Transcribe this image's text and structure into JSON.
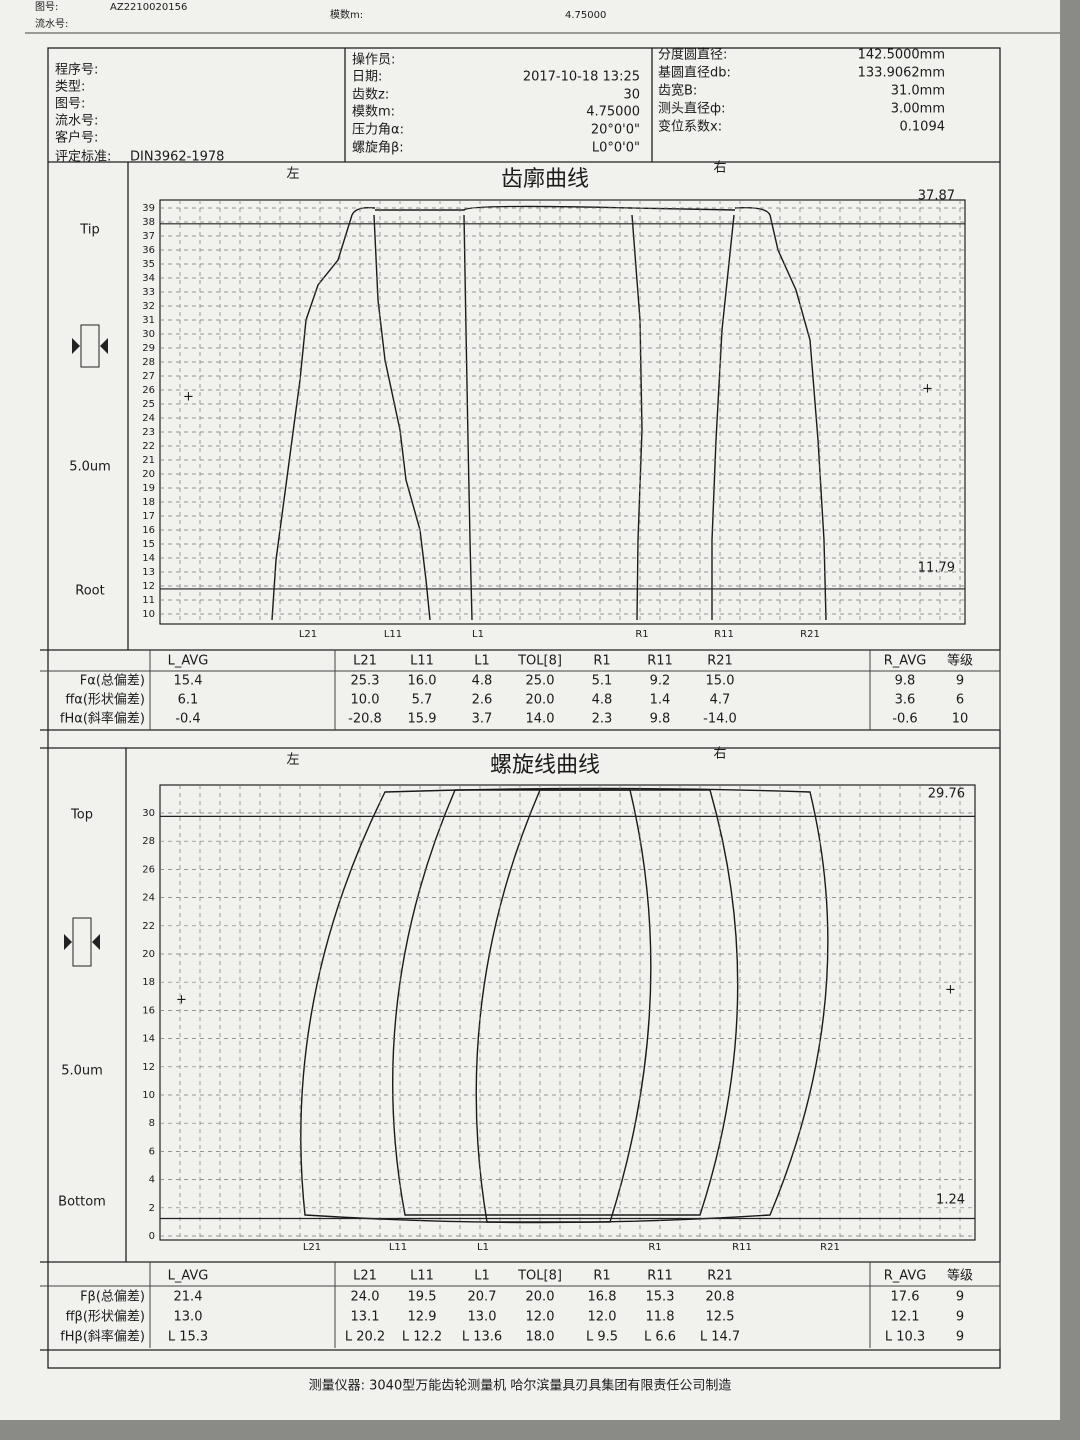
{
  "top_strip": {
    "drawing_no_label": "图号:",
    "drawing_no": "AZ2210020156",
    "serial_label": "流水号:",
    "module_label": "模数m:",
    "module": "4.75000"
  },
  "info": {
    "left": [
      {
        "label": "程序号:"
      },
      {
        "label": "类型:"
      },
      {
        "label": "图号:"
      },
      {
        "label": "流水号:"
      },
      {
        "label": "客户号:"
      },
      {
        "label": "评定标准:",
        "value": "DIN3962-1978"
      }
    ],
    "middle": [
      {
        "label": "操作员:"
      },
      {
        "label": "日期:",
        "value": "2017-10-18 13:25"
      },
      {
        "label": "齿数z:",
        "value": "30"
      },
      {
        "label": "模数m:",
        "value": "4.75000"
      },
      {
        "label": "压力角α:",
        "value": "20°0'0\""
      },
      {
        "label": "螺旋角β:",
        "value": "L0°0'0\""
      }
    ],
    "right": [
      {
        "label": "分度圆直径:",
        "value": "142.5000mm"
      },
      {
        "label": "基圆直径db:",
        "value": "133.9062mm"
      },
      {
        "label": "齿宽B:",
        "value": "31.0mm"
      },
      {
        "label": "测头直径ф:",
        "value": "3.00mm"
      },
      {
        "label": "变位系数x:",
        "value": "0.1094"
      }
    ]
  },
  "profile": {
    "left_label": "左",
    "title": "齿廓曲线",
    "right_label": "右",
    "side_labels": [
      "Tip",
      "5.0um",
      "Root"
    ],
    "yticks": [
      10,
      11,
      12,
      13,
      14,
      15,
      16,
      17,
      18,
      19,
      20,
      21,
      22,
      23,
      24,
      25,
      26,
      27,
      28,
      29,
      30,
      31,
      32,
      33,
      34,
      35,
      36,
      37,
      38,
      39
    ],
    "top_value": 37.87,
    "bottom_value": 11.79,
    "curve_labels": [
      "L21",
      "L11",
      "L1",
      "R1",
      "R11",
      "R21"
    ],
    "table": {
      "columns": [
        "L_AVG",
        "L21",
        "L11",
        "L1",
        "TOL[8]",
        "R1",
        "R11",
        "R21",
        "R_AVG",
        "等级"
      ],
      "rows": [
        {
          "label": "Fα(总偏差)",
          "cells": [
            "15.4",
            "25.3",
            "16.0",
            "4.8",
            "25.0",
            "5.1",
            "9.2",
            "15.0",
            "9.8",
            "9"
          ]
        },
        {
          "label": "ffα(形状偏差)",
          "cells": [
            "6.1",
            "10.0",
            "5.7",
            "2.6",
            "20.0",
            "4.8",
            "1.4",
            "4.7",
            "3.6",
            "6"
          ]
        },
        {
          "label": "fHα(斜率偏差)",
          "cells": [
            "-0.4",
            "-20.8",
            "15.9",
            "3.7",
            "14.0",
            "2.3",
            "9.8",
            "-14.0",
            "-0.6",
            "10"
          ]
        }
      ]
    }
  },
  "helix": {
    "left_label": "左",
    "title": "螺旋线曲线",
    "right_label": "右",
    "side_labels": [
      "Top",
      "5.0um",
      "Bottom"
    ],
    "yticks": [
      0,
      2,
      4,
      6,
      8,
      10,
      12,
      14,
      16,
      18,
      20,
      22,
      24,
      26,
      28,
      30
    ],
    "top_value": 29.76,
    "bottom_value": 1.24,
    "curve_labels": [
      "L21",
      "L11",
      "L1",
      "R1",
      "R11",
      "R21"
    ],
    "table": {
      "columns": [
        "L_AVG",
        "L21",
        "L11",
        "L1",
        "TOL[8]",
        "R1",
        "R11",
        "R21",
        "R_AVG",
        "等级"
      ],
      "rows": [
        {
          "label": "Fβ(总偏差)",
          "cells": [
            "21.4",
            "24.0",
            "19.5",
            "20.7",
            "20.0",
            "16.8",
            "15.3",
            "20.8",
            "17.6",
            "9"
          ]
        },
        {
          "label": "ffβ(形状偏差)",
          "cells": [
            "13.0",
            "13.1",
            "12.9",
            "13.0",
            "12.0",
            "12.0",
            "11.8",
            "12.5",
            "12.1",
            "9"
          ]
        },
        {
          "label": "fHβ(斜率偏差)",
          "cells": [
            "L 15.3",
            "L 20.2",
            "L 12.2",
            "L 13.6",
            "18.0",
            "L 9.5",
            "L 6.6",
            "L 14.7",
            "L 10.3",
            "9"
          ]
        }
      ]
    }
  },
  "footer": "测量仪器: 3040型万能齿轮测量机  哈尔滨量具刃具集团有限责任公司制造"
}
